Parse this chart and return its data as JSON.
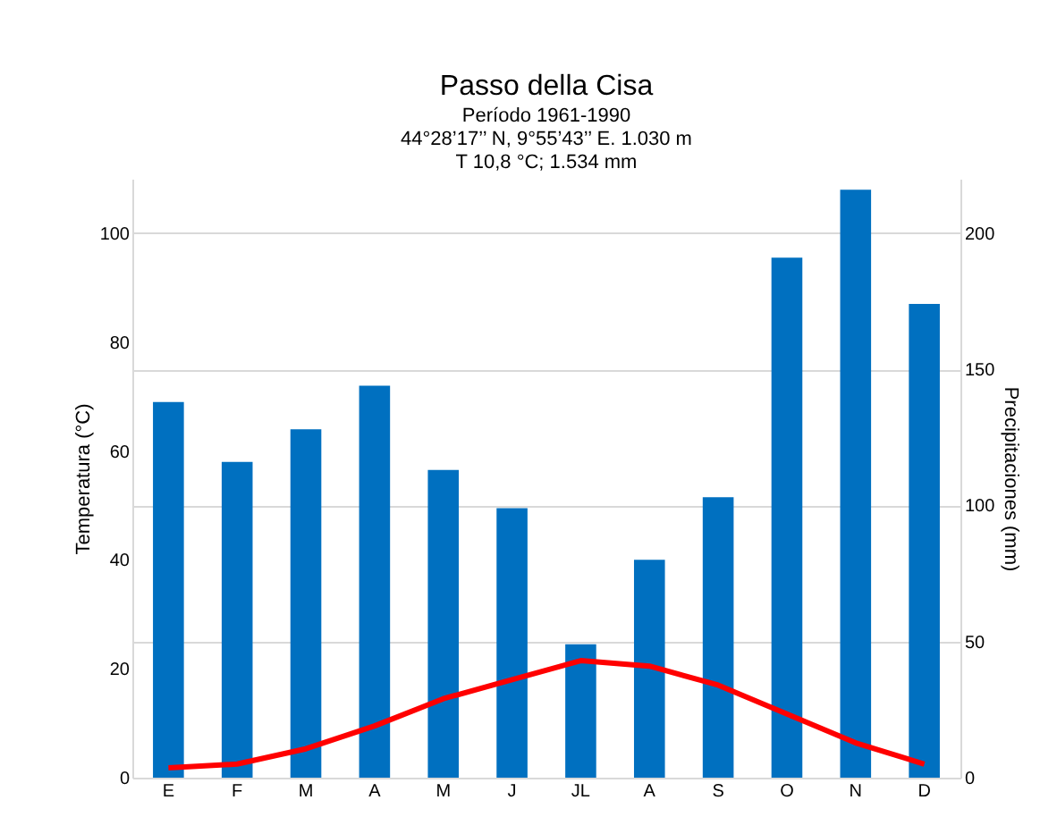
{
  "chart_data": {
    "type": "bar",
    "title": "Passo della Cisa",
    "subtitle": "Período 1961-1990\n44°28’17’’ N, 9°55’43’’ E. 1.030 m\nT 10,8 °C; 1.534 mm",
    "ylabel": "Temperatura  (°C)",
    "y2label": "Precipitaciones (mm)",
    "categories": [
      "E",
      "F",
      "M",
      "A",
      "M",
      "J",
      "JL",
      "A",
      "S",
      "O",
      "N",
      "D"
    ],
    "series": [
      {
        "axis": "y2",
        "color": "#0070c0",
        "values": [
          138,
          116,
          128,
          144,
          113,
          99,
          49,
          80,
          103,
          191,
          216,
          174
        ]
      },
      {
        "type": "line",
        "axis": "y",
        "color": "#ff0000",
        "values": [
          1.8,
          2.5,
          5.3,
          9.5,
          14.5,
          18,
          21.5,
          20.5,
          17,
          11.7,
          6.4,
          2.5
        ]
      }
    ],
    "ylim": [
      0,
      110
    ],
    "yticks": [
      0,
      20,
      40,
      60,
      80,
      100
    ],
    "y2lim": [
      0,
      220
    ],
    "y2ticks": [
      0,
      50,
      100,
      150,
      200
    ],
    "grid": "y",
    "legend": false,
    "marker": "none",
    "line_style": "solid"
  }
}
